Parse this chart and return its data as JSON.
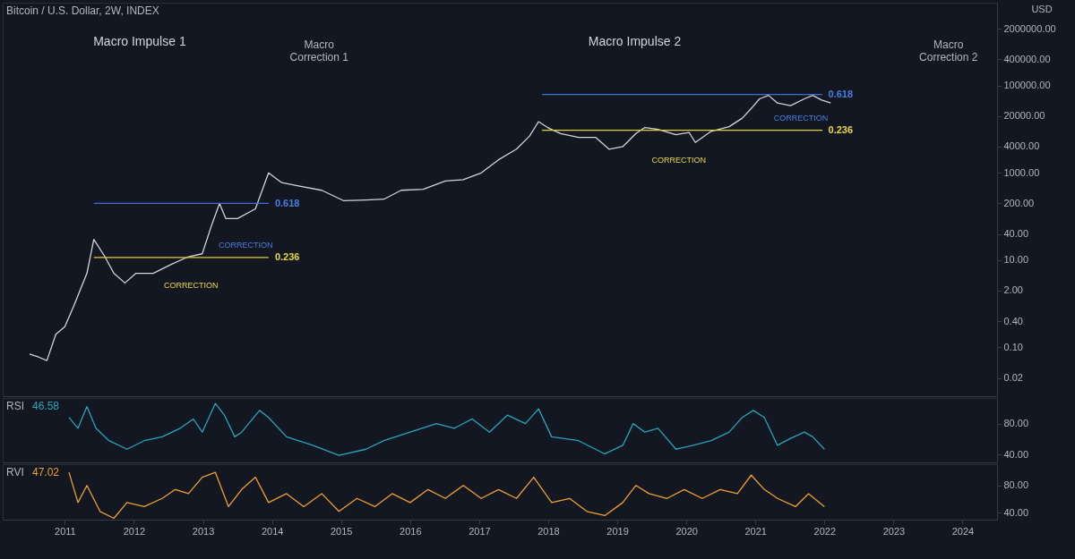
{
  "chart_data": [
    {
      "type": "line",
      "title": "Bitcoin / U.S. Dollar, 2W, INDEX",
      "ylabel": "USD",
      "log": "y",
      "tick_labels": "y",
      "xlim": [
        2010.1,
        2024.5
      ],
      "xticks": [
        2011,
        2012,
        2013,
        2014,
        2015,
        2016,
        2017,
        2018,
        2019,
        2020,
        2021,
        2022,
        2023,
        2024
      ],
      "ylim": [
        0.0076,
        8000000
      ],
      "yticks": [
        {
          "value": 0.02,
          "label": "0.02"
        },
        {
          "value": 0.1,
          "label": "0.10"
        },
        {
          "value": 0.4,
          "label": "0.40"
        },
        {
          "value": 2,
          "label": "2.00"
        },
        {
          "value": 10,
          "label": "10.00"
        },
        {
          "value": 40,
          "label": "40.00"
        },
        {
          "value": 200,
          "label": "200.00"
        },
        {
          "value": 1000,
          "label": "1000.00"
        },
        {
          "value": 4000,
          "label": "4000.00"
        },
        {
          "value": 20000,
          "label": "20000.00"
        },
        {
          "value": 100000,
          "label": "100000.00"
        },
        {
          "value": 400000,
          "label": "400000.00"
        },
        {
          "value": 2000000,
          "label": "2000000.00"
        }
      ],
      "series": [
        {
          "color": "#d1d4dc",
          "x": [
            2010.49,
            2010.62,
            2010.74,
            2010.87,
            2011.0,
            2011.13,
            2011.32,
            2011.42,
            2011.58,
            2011.71,
            2011.87,
            2012.03,
            2012.28,
            2012.54,
            2012.79,
            2012.99,
            2013.12,
            2013.24,
            2013.33,
            2013.5,
            2013.76,
            2013.95,
            2014.14,
            2014.4,
            2014.72,
            2015.04,
            2015.36,
            2015.62,
            2015.87,
            2016.19,
            2016.51,
            2016.77,
            2017.03,
            2017.28,
            2017.54,
            2017.73,
            2017.86,
            2017.99,
            2018.18,
            2018.44,
            2018.69,
            2018.88,
            2019.08,
            2019.27,
            2019.4,
            2019.59,
            2019.85,
            2020.04,
            2020.13,
            2020.36,
            2020.62,
            2020.81,
            2020.94,
            2021.06,
            2021.19,
            2021.32,
            2021.51,
            2021.71,
            2021.83,
            2021.96,
            2022.09
          ],
          "values": [
            0.07,
            0.06,
            0.05,
            0.2,
            0.3,
            0.9,
            5,
            30,
            12,
            5,
            3,
            5,
            5,
            8,
            12,
            14,
            60,
            200,
            90,
            90,
            150,
            1000,
            600,
            500,
            400,
            230,
            240,
            250,
            400,
            420,
            650,
            700,
            1000,
            2000,
            3500,
            7000,
            15000,
            11000,
            8000,
            6500,
            6500,
            3500,
            4000,
            8000,
            11000,
            10000,
            7500,
            8500,
            5000,
            9000,
            11500,
            18000,
            30000,
            50000,
            60000,
            40000,
            35000,
            50000,
            60000,
            47000,
            40000
          ]
        },
        {
          "color": "#3d6fd6",
          "x": [
            2011.42,
            2013.95
          ],
          "values": [
            200,
            200
          ]
        },
        {
          "color": "#e0d030",
          "x": [
            2011.42,
            2013.95
          ],
          "values": [
            11.5,
            11.5
          ]
        },
        {
          "color": "#3d6fd6",
          "x": [
            2017.91,
            2021.97
          ],
          "values": [
            63000,
            63000
          ]
        },
        {
          "color": "#e0d030",
          "x": [
            2017.91,
            2021.97
          ],
          "values": [
            9500,
            9500
          ]
        }
      ],
      "annotations": [
        "Macro Impulse 1",
        "Macro\nCorrection 1",
        "Macro Impulse 2",
        "Macro\nCorrection 2",
        "0.618",
        "0.236",
        "CORRECTION",
        "CORRECTION",
        "0.618",
        "0.236",
        "CORRECTION",
        "CORRECTION"
      ]
    },
    {
      "type": "line",
      "title": "RSI",
      "annotations": [
        "46.58"
      ],
      "tick_labels": "y",
      "xlim": [
        2010.1,
        2024.5
      ],
      "xticks": [
        2011,
        2012,
        2013,
        2014,
        2015,
        2016,
        2017,
        2018,
        2019,
        2020,
        2021,
        2022,
        2023,
        2024
      ],
      "ylim": [
        30,
        113
      ],
      "yticks": [
        {
          "value": 40,
          "label": "40.00"
        },
        {
          "value": 80,
          "label": "80.00"
        }
      ],
      "series": [
        {
          "color": "#26a6b8",
          "x": [
            2011.06,
            2011.19,
            2011.32,
            2011.45,
            2011.64,
            2011.9,
            2012.15,
            2012.41,
            2012.67,
            2012.86,
            2012.99,
            2013.18,
            2013.31,
            2013.46,
            2013.56,
            2013.82,
            2013.95,
            2014.21,
            2014.59,
            2014.97,
            2015.36,
            2015.62,
            2016.0,
            2016.38,
            2016.64,
            2016.9,
            2017.15,
            2017.41,
            2017.67,
            2017.86,
            2018.05,
            2018.44,
            2018.82,
            2019.08,
            2019.23,
            2019.4,
            2019.59,
            2019.85,
            2020.1,
            2020.36,
            2020.62,
            2020.81,
            2020.97,
            2021.13,
            2021.32,
            2021.51,
            2021.71,
            2021.83,
            2022.0
          ],
          "values": [
            88,
            74,
            102,
            74,
            58,
            47,
            58,
            63,
            74,
            86,
            69,
            106,
            91,
            63,
            69,
            97,
            88,
            63,
            52,
            39,
            47,
            58,
            69,
            80,
            74,
            86,
            69,
            91,
            80,
            99,
            63,
            58,
            41,
            52,
            80,
            69,
            74,
            47,
            52,
            58,
            69,
            88,
            97,
            88,
            52,
            61,
            69,
            63,
            47
          ]
        }
      ]
    },
    {
      "type": "line",
      "title": "RVI",
      "annotations": [
        "47.02"
      ],
      "xlim": [
        2010.1,
        2024.5
      ],
      "xticks": [
        2011,
        2012,
        2013,
        2014,
        2015,
        2016,
        2017,
        2018,
        2019,
        2020,
        2021,
        2022,
        2023,
        2024
      ],
      "ylim": [
        30,
        111
      ],
      "yticks": [
        {
          "value": 40,
          "label": "40.00"
        },
        {
          "value": 80,
          "label": "80.00"
        }
      ],
      "series": [
        {
          "color": "#f0a030",
          "x": [
            2011.06,
            2011.19,
            2011.32,
            2011.51,
            2011.71,
            2011.9,
            2012.15,
            2012.41,
            2012.6,
            2012.79,
            2012.99,
            2013.18,
            2013.37,
            2013.56,
            2013.76,
            2013.95,
            2014.21,
            2014.46,
            2014.72,
            2014.97,
            2015.23,
            2015.49,
            2015.74,
            2016.0,
            2016.26,
            2016.51,
            2016.77,
            2017.03,
            2017.28,
            2017.54,
            2017.79,
            2018.05,
            2018.31,
            2018.56,
            2018.82,
            2019.08,
            2019.27,
            2019.46,
            2019.72,
            2019.97,
            2020.23,
            2020.49,
            2020.74,
            2020.94,
            2021.13,
            2021.32,
            2021.58,
            2021.77,
            2022.0
          ],
          "values": [
            99,
            55,
            80,
            42,
            32,
            55,
            49,
            61,
            74,
            68,
            92,
            99,
            49,
            74,
            92,
            55,
            68,
            49,
            68,
            42,
            61,
            49,
            68,
            55,
            74,
            61,
            80,
            61,
            74,
            61,
            92,
            55,
            61,
            42,
            36,
            55,
            80,
            68,
            61,
            74,
            61,
            74,
            68,
            95,
            74,
            61,
            49,
            68,
            49
          ]
        }
      ]
    }
  ]
}
